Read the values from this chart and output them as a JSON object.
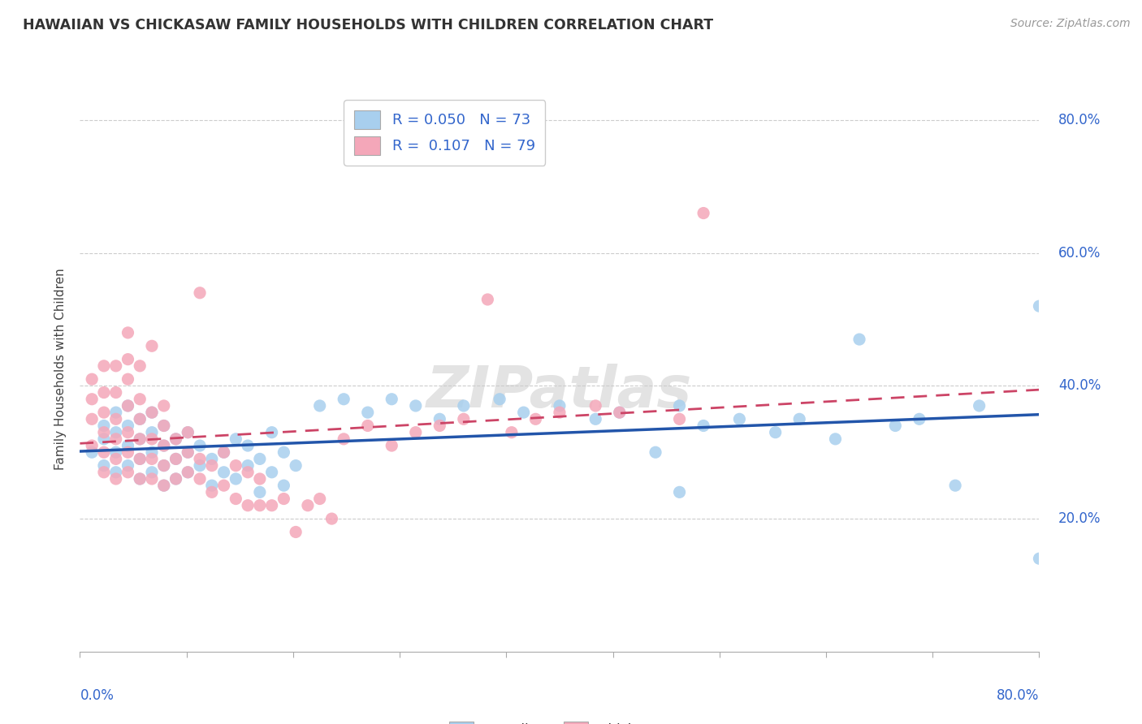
{
  "title": "HAWAIIAN VS CHICKASAW FAMILY HOUSEHOLDS WITH CHILDREN CORRELATION CHART",
  "source": "Source: ZipAtlas.com",
  "ylabel": "Family Households with Children",
  "xlim": [
    0.0,
    0.8
  ],
  "ylim": [
    0.0,
    0.85
  ],
  "ytick_vals": [
    0.2,
    0.4,
    0.6,
    0.8
  ],
  "xtick_vals": [
    0.0,
    0.8
  ],
  "hawaiians_color": "#A8CFEE",
  "chickasaw_color": "#F4A7B9",
  "hawaiians_line_color": "#2255AA",
  "chickasaw_line_color": "#CC4466",
  "watermark_text": "ZIPatlas",
  "hawaiians_scatter": [
    [
      0.01,
      0.3
    ],
    [
      0.02,
      0.28
    ],
    [
      0.02,
      0.32
    ],
    [
      0.02,
      0.34
    ],
    [
      0.03,
      0.27
    ],
    [
      0.03,
      0.3
    ],
    [
      0.03,
      0.33
    ],
    [
      0.03,
      0.36
    ],
    [
      0.04,
      0.28
    ],
    [
      0.04,
      0.31
    ],
    [
      0.04,
      0.34
    ],
    [
      0.04,
      0.37
    ],
    [
      0.05,
      0.26
    ],
    [
      0.05,
      0.29
    ],
    [
      0.05,
      0.32
    ],
    [
      0.05,
      0.35
    ],
    [
      0.06,
      0.27
    ],
    [
      0.06,
      0.3
    ],
    [
      0.06,
      0.33
    ],
    [
      0.06,
      0.36
    ],
    [
      0.07,
      0.25
    ],
    [
      0.07,
      0.28
    ],
    [
      0.07,
      0.31
    ],
    [
      0.07,
      0.34
    ],
    [
      0.08,
      0.26
    ],
    [
      0.08,
      0.29
    ],
    [
      0.08,
      0.32
    ],
    [
      0.09,
      0.27
    ],
    [
      0.09,
      0.3
    ],
    [
      0.09,
      0.33
    ],
    [
      0.1,
      0.28
    ],
    [
      0.1,
      0.31
    ],
    [
      0.11,
      0.25
    ],
    [
      0.11,
      0.29
    ],
    [
      0.12,
      0.27
    ],
    [
      0.12,
      0.3
    ],
    [
      0.13,
      0.26
    ],
    [
      0.13,
      0.32
    ],
    [
      0.14,
      0.28
    ],
    [
      0.14,
      0.31
    ],
    [
      0.15,
      0.24
    ],
    [
      0.15,
      0.29
    ],
    [
      0.16,
      0.27
    ],
    [
      0.16,
      0.33
    ],
    [
      0.17,
      0.25
    ],
    [
      0.17,
      0.3
    ],
    [
      0.18,
      0.28
    ],
    [
      0.2,
      0.37
    ],
    [
      0.22,
      0.38
    ],
    [
      0.24,
      0.36
    ],
    [
      0.26,
      0.38
    ],
    [
      0.28,
      0.37
    ],
    [
      0.3,
      0.35
    ],
    [
      0.32,
      0.37
    ],
    [
      0.35,
      0.38
    ],
    [
      0.37,
      0.36
    ],
    [
      0.4,
      0.37
    ],
    [
      0.43,
      0.35
    ],
    [
      0.45,
      0.36
    ],
    [
      0.48,
      0.3
    ],
    [
      0.5,
      0.37
    ],
    [
      0.5,
      0.24
    ],
    [
      0.52,
      0.34
    ],
    [
      0.55,
      0.35
    ],
    [
      0.58,
      0.33
    ],
    [
      0.6,
      0.35
    ],
    [
      0.63,
      0.32
    ],
    [
      0.65,
      0.47
    ],
    [
      0.68,
      0.34
    ],
    [
      0.7,
      0.35
    ],
    [
      0.73,
      0.25
    ],
    [
      0.75,
      0.37
    ],
    [
      0.8,
      0.52
    ],
    [
      0.8,
      0.14
    ]
  ],
  "chickasaw_scatter": [
    [
      0.01,
      0.31
    ],
    [
      0.01,
      0.35
    ],
    [
      0.01,
      0.38
    ],
    [
      0.01,
      0.41
    ],
    [
      0.02,
      0.27
    ],
    [
      0.02,
      0.3
    ],
    [
      0.02,
      0.33
    ],
    [
      0.02,
      0.36
    ],
    [
      0.02,
      0.39
    ],
    [
      0.02,
      0.43
    ],
    [
      0.03,
      0.26
    ],
    [
      0.03,
      0.29
    ],
    [
      0.03,
      0.32
    ],
    [
      0.03,
      0.35
    ],
    [
      0.03,
      0.39
    ],
    [
      0.03,
      0.43
    ],
    [
      0.04,
      0.27
    ],
    [
      0.04,
      0.3
    ],
    [
      0.04,
      0.33
    ],
    [
      0.04,
      0.37
    ],
    [
      0.04,
      0.41
    ],
    [
      0.04,
      0.44
    ],
    [
      0.05,
      0.26
    ],
    [
      0.05,
      0.29
    ],
    [
      0.05,
      0.32
    ],
    [
      0.05,
      0.35
    ],
    [
      0.05,
      0.38
    ],
    [
      0.05,
      0.43
    ],
    [
      0.06,
      0.26
    ],
    [
      0.06,
      0.29
    ],
    [
      0.06,
      0.32
    ],
    [
      0.06,
      0.36
    ],
    [
      0.07,
      0.25
    ],
    [
      0.07,
      0.28
    ],
    [
      0.07,
      0.31
    ],
    [
      0.07,
      0.34
    ],
    [
      0.07,
      0.37
    ],
    [
      0.08,
      0.26
    ],
    [
      0.08,
      0.29
    ],
    [
      0.08,
      0.32
    ],
    [
      0.09,
      0.27
    ],
    [
      0.09,
      0.3
    ],
    [
      0.09,
      0.33
    ],
    [
      0.1,
      0.26
    ],
    [
      0.1,
      0.29
    ],
    [
      0.11,
      0.24
    ],
    [
      0.11,
      0.28
    ],
    [
      0.12,
      0.25
    ],
    [
      0.12,
      0.3
    ],
    [
      0.13,
      0.23
    ],
    [
      0.13,
      0.28
    ],
    [
      0.14,
      0.22
    ],
    [
      0.14,
      0.27
    ],
    [
      0.15,
      0.22
    ],
    [
      0.15,
      0.26
    ],
    [
      0.16,
      0.22
    ],
    [
      0.17,
      0.23
    ],
    [
      0.18,
      0.18
    ],
    [
      0.19,
      0.22
    ],
    [
      0.2,
      0.23
    ],
    [
      0.21,
      0.2
    ],
    [
      0.22,
      0.32
    ],
    [
      0.24,
      0.34
    ],
    [
      0.26,
      0.31
    ],
    [
      0.28,
      0.33
    ],
    [
      0.3,
      0.34
    ],
    [
      0.32,
      0.35
    ],
    [
      0.34,
      0.53
    ],
    [
      0.36,
      0.33
    ],
    [
      0.38,
      0.35
    ],
    [
      0.4,
      0.36
    ],
    [
      0.43,
      0.37
    ],
    [
      0.45,
      0.36
    ],
    [
      0.5,
      0.35
    ],
    [
      0.52,
      0.66
    ],
    [
      0.04,
      0.48
    ],
    [
      0.06,
      0.46
    ],
    [
      0.1,
      0.54
    ]
  ]
}
